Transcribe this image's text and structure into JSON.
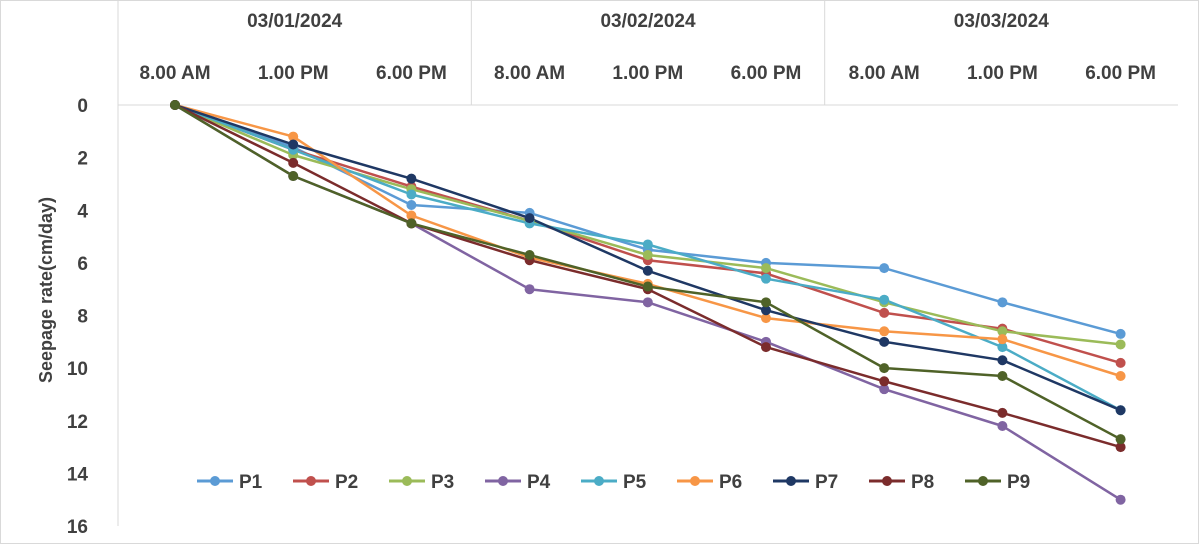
{
  "chart_data": {
    "type": "line",
    "title": "",
    "ylabel": "Seepage rate(cm/day)",
    "xlabel": "",
    "dates": [
      "03/01/2024",
      "03/02/2024",
      "03/03/2024"
    ],
    "categories": [
      "8.00 AM",
      "1.00 PM",
      "6.00 PM",
      "8.00 AM",
      "1.00 PM",
      "6.00 PM",
      "8.00 AM",
      "1.00 PM",
      "6.00 PM"
    ],
    "ylim": [
      0,
      16
    ],
    "y_inverted": true,
    "y_ticks": [
      0,
      2,
      4,
      6,
      8,
      10,
      12,
      14,
      16
    ],
    "grid": false,
    "legend_position": "bottom-inside",
    "series": [
      {
        "name": "P1",
        "color": "#5b9bd5",
        "values": [
          0,
          1.6,
          3.8,
          4.1,
          5.5,
          6.0,
          6.2,
          7.5,
          8.7
        ]
      },
      {
        "name": "P2",
        "color": "#c0504d",
        "values": [
          0,
          1.7,
          3.1,
          4.4,
          5.9,
          6.4,
          7.9,
          8.5,
          9.8
        ]
      },
      {
        "name": "P3",
        "color": "#9bbb59",
        "values": [
          0,
          1.9,
          3.2,
          4.4,
          5.7,
          6.2,
          7.5,
          8.6,
          9.1
        ]
      },
      {
        "name": "P4",
        "color": "#8064a2",
        "values": [
          0,
          2.7,
          4.5,
          7.0,
          7.5,
          9.0,
          10.8,
          12.2,
          15.0
        ]
      },
      {
        "name": "P5",
        "color": "#4bacc6",
        "values": [
          0,
          1.7,
          3.4,
          4.5,
          5.3,
          6.6,
          7.4,
          9.2,
          11.6
        ]
      },
      {
        "name": "P6",
        "color": "#f79646",
        "values": [
          0,
          1.2,
          4.2,
          5.8,
          6.8,
          8.1,
          8.6,
          8.9,
          10.3
        ]
      },
      {
        "name": "P7",
        "color": "#1f3864",
        "values": [
          0,
          1.5,
          2.8,
          4.3,
          6.3,
          7.8,
          9.0,
          9.7,
          11.6
        ]
      },
      {
        "name": "P8",
        "color": "#7b2c2c",
        "values": [
          0,
          2.2,
          4.5,
          5.9,
          7.0,
          9.2,
          10.5,
          11.7,
          13.0
        ]
      },
      {
        "name": "P9",
        "color": "#4f6228",
        "values": [
          0,
          2.7,
          4.5,
          5.7,
          6.9,
          7.5,
          10.0,
          10.3,
          12.7
        ]
      }
    ]
  }
}
